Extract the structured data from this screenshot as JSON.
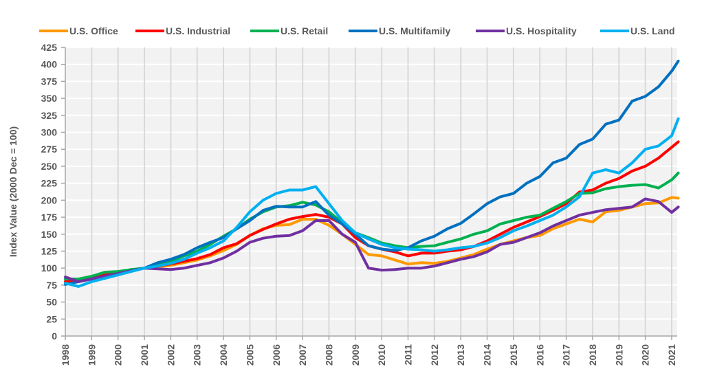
{
  "chart_data": {
    "type": "line",
    "title": "",
    "xlabel": "",
    "ylabel": "Index Value (2000 Dec = 100)",
    "ylim": [
      0,
      425
    ],
    "yticks": [
      0,
      25,
      50,
      75,
      100,
      125,
      150,
      175,
      200,
      225,
      250,
      275,
      300,
      325,
      350,
      375,
      400,
      425
    ],
    "xlim": [
      1998,
      2021.3
    ],
    "xticks": [
      "1998",
      "1999",
      "2000",
      "2001",
      "2002",
      "2003",
      "2004",
      "2005",
      "2006",
      "2007",
      "2008",
      "2009",
      "2010",
      "2011",
      "2012",
      "2013",
      "2014",
      "2015",
      "2016",
      "2017",
      "2018",
      "2019",
      "2020",
      "2021"
    ],
    "grid": true,
    "legend_position": "top",
    "x": [
      1998.0,
      1998.5,
      1999.0,
      1999.5,
      2000.0,
      2000.5,
      2001.0,
      2001.5,
      2002.0,
      2002.5,
      2003.0,
      2003.5,
      2004.0,
      2004.5,
      2005.0,
      2005.5,
      2006.0,
      2006.5,
      2007.0,
      2007.5,
      2008.0,
      2008.5,
      2009.0,
      2009.5,
      2010.0,
      2010.5,
      2011.0,
      2011.5,
      2012.0,
      2012.5,
      2013.0,
      2013.5,
      2014.0,
      2014.5,
      2015.0,
      2015.5,
      2016.0,
      2016.5,
      2017.0,
      2017.5,
      2018.0,
      2018.5,
      2019.0,
      2019.5,
      2020.0,
      2020.5,
      2021.0,
      2021.25
    ],
    "series": [
      {
        "name": "U.S. Office",
        "color": "#FF9900",
        "values": [
          80,
          82,
          86,
          90,
          93,
          97,
          100,
          102,
          104,
          108,
          112,
          118,
          126,
          135,
          148,
          158,
          163,
          164,
          172,
          172,
          163,
          150,
          135,
          120,
          118,
          112,
          106,
          108,
          107,
          110,
          115,
          120,
          128,
          135,
          140,
          145,
          148,
          158,
          165,
          172,
          168,
          183,
          185,
          190,
          195,
          196,
          204,
          203
        ]
      },
      {
        "name": "U.S. Industrial",
        "color": "#FF0000",
        "values": [
          80,
          82,
          86,
          90,
          93,
          97,
          100,
          103,
          106,
          110,
          114,
          120,
          130,
          136,
          148,
          157,
          165,
          172,
          176,
          179,
          175,
          165,
          145,
          133,
          128,
          124,
          118,
          122,
          122,
          125,
          127,
          132,
          140,
          150,
          160,
          168,
          176,
          185,
          195,
          212,
          215,
          225,
          232,
          243,
          250,
          262,
          278,
          286
        ]
      },
      {
        "name": "U.S. Retail",
        "color": "#00B050",
        "values": [
          84,
          84,
          88,
          94,
          95,
          98,
          100,
          106,
          110,
          118,
          125,
          135,
          147,
          158,
          172,
          183,
          190,
          192,
          197,
          193,
          183,
          167,
          152,
          145,
          137,
          133,
          130,
          132,
          133,
          138,
          143,
          150,
          155,
          165,
          170,
          175,
          178,
          188,
          198,
          210,
          211,
          217,
          220,
          222,
          223,
          218,
          230,
          240
        ]
      },
      {
        "name": "U.S. Multifamily",
        "color": "#0070C0",
        "values": [
          76,
          80,
          84,
          88,
          92,
          96,
          100,
          108,
          113,
          120,
          130,
          138,
          145,
          158,
          170,
          185,
          191,
          190,
          190,
          198,
          178,
          165,
          150,
          133,
          128,
          126,
          130,
          140,
          147,
          158,
          166,
          180,
          195,
          205,
          210,
          225,
          235,
          255,
          262,
          282,
          290,
          312,
          318,
          346,
          353,
          367,
          390,
          405
        ]
      },
      {
        "name": "U.S. Hospitality",
        "color": "#7030A0",
        "values": [
          87,
          80,
          84,
          88,
          92,
          96,
          100,
          99,
          98,
          100,
          104,
          108,
          115,
          125,
          138,
          144,
          147,
          148,
          155,
          170,
          170,
          150,
          138,
          100,
          97,
          98,
          100,
          100,
          103,
          108,
          113,
          117,
          124,
          135,
          138,
          145,
          152,
          162,
          170,
          178,
          182,
          186,
          188,
          190,
          202,
          198,
          182,
          190
        ]
      },
      {
        "name": "U.S. Land",
        "color": "#00B0F0",
        "values": [
          78,
          73,
          80,
          85,
          90,
          95,
          100,
          103,
          107,
          113,
          122,
          130,
          140,
          160,
          183,
          200,
          210,
          215,
          215,
          220,
          195,
          170,
          152,
          143,
          135,
          130,
          128,
          127,
          125,
          127,
          130,
          132,
          137,
          145,
          155,
          162,
          170,
          178,
          190,
          205,
          240,
          245,
          240,
          255,
          275,
          280,
          295,
          320
        ]
      }
    ]
  }
}
